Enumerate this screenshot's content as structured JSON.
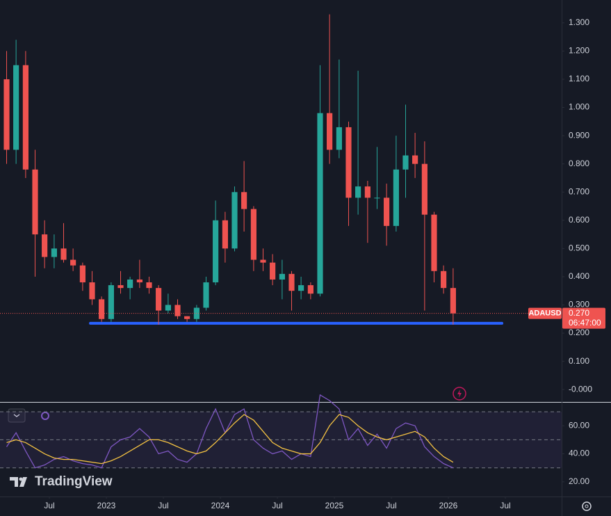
{
  "chart_data": [
    {
      "type": "candlestick",
      "symbol": "ADAUSD",
      "x": [
        2022.125,
        2022.208,
        2022.292,
        2022.375,
        2022.458,
        2022.542,
        2022.625,
        2022.708,
        2022.792,
        2022.875,
        2022.958,
        2023.042,
        2023.125,
        2023.208,
        2023.292,
        2023.375,
        2023.458,
        2023.542,
        2023.625,
        2023.708,
        2023.792,
        2023.875,
        2023.958,
        2024.042,
        2024.125,
        2024.208,
        2024.292,
        2024.375,
        2024.458,
        2024.542,
        2024.625,
        2024.708,
        2024.792,
        2024.875,
        2024.958,
        2025.042,
        2025.125,
        2025.208,
        2025.292,
        2025.375,
        2025.458,
        2025.542,
        2025.625,
        2025.708,
        2025.792,
        2025.875,
        2025.958,
        2026.042
      ],
      "open": [
        1.1,
        0.85,
        1.15,
        0.78,
        0.55,
        0.47,
        0.5,
        0.46,
        0.44,
        0.38,
        0.32,
        0.25,
        0.37,
        0.36,
        0.39,
        0.38,
        0.36,
        0.28,
        0.3,
        0.26,
        0.25,
        0.29,
        0.38,
        0.6,
        0.5,
        0.7,
        0.64,
        0.46,
        0.45,
        0.39,
        0.41,
        0.35,
        0.37,
        0.34,
        0.98,
        0.85,
        0.93,
        0.68,
        0.72,
        0.68,
        0.68,
        0.58,
        0.78,
        0.83,
        0.8,
        0.62,
        0.42,
        0.36
      ],
      "high": [
        1.2,
        1.24,
        1.2,
        0.85,
        0.6,
        0.55,
        0.59,
        0.5,
        0.45,
        0.42,
        0.33,
        0.38,
        0.42,
        0.4,
        0.46,
        0.4,
        0.37,
        0.34,
        0.32,
        0.26,
        0.3,
        0.4,
        0.67,
        0.63,
        0.72,
        0.81,
        0.65,
        0.5,
        0.48,
        0.46,
        0.42,
        0.4,
        0.38,
        1.15,
        1.33,
        1.17,
        0.95,
        1.13,
        0.74,
        0.86,
        0.73,
        0.9,
        1.01,
        0.91,
        0.88,
        0.63,
        0.44,
        0.43
      ],
      "low": [
        0.8,
        0.8,
        0.75,
        0.4,
        0.43,
        0.43,
        0.45,
        0.42,
        0.35,
        0.3,
        0.24,
        0.24,
        0.34,
        0.32,
        0.36,
        0.34,
        0.23,
        0.27,
        0.25,
        0.24,
        0.24,
        0.28,
        0.37,
        0.45,
        0.49,
        0.56,
        0.42,
        0.42,
        0.37,
        0.32,
        0.28,
        0.32,
        0.32,
        0.33,
        0.8,
        0.82,
        0.58,
        0.62,
        0.52,
        0.64,
        0.51,
        0.56,
        0.68,
        0.75,
        0.28,
        0.38,
        0.34,
        0.23
      ],
      "close": [
        0.85,
        1.15,
        0.78,
        0.55,
        0.47,
        0.5,
        0.46,
        0.44,
        0.38,
        0.32,
        0.25,
        0.37,
        0.36,
        0.39,
        0.38,
        0.36,
        0.28,
        0.3,
        0.26,
        0.25,
        0.29,
        0.38,
        0.6,
        0.5,
        0.7,
        0.64,
        0.46,
        0.45,
        0.39,
        0.41,
        0.35,
        0.37,
        0.34,
        0.98,
        0.85,
        0.93,
        0.68,
        0.72,
        0.68,
        0.68,
        0.58,
        0.78,
        0.83,
        0.8,
        0.62,
        0.42,
        0.36,
        0.27
      ],
      "up_color": "#26a69a",
      "down_color": "#ef5350",
      "xlim": [
        2022.067,
        2026.994
      ],
      "xticks": [
        {
          "value": 2022.5,
          "label": "Jul"
        },
        2023,
        {
          "value": 2023.5,
          "label": "Jul"
        },
        2024,
        {
          "value": 2024.5,
          "label": "Jul"
        },
        2025,
        {
          "value": 2025.5,
          "label": "Jul"
        },
        2026,
        {
          "value": 2026.5,
          "label": "Jul"
        }
      ],
      "ylim": [
        -0.044,
        1.381
      ],
      "yticks": [
        {
          "value": 0,
          "label": "-0.000"
        },
        {
          "value": 0.1,
          "label": "0.100"
        },
        {
          "value": 0.2,
          "label": "0.200"
        },
        {
          "value": 0.3,
          "label": "0.300"
        },
        {
          "value": 0.4,
          "label": "0.400"
        },
        {
          "value": 0.5,
          "label": "0.500"
        },
        {
          "value": 0.6,
          "label": "0.600"
        },
        {
          "value": 0.7,
          "label": "0.700"
        },
        {
          "value": 0.8,
          "label": "0.800"
        },
        {
          "value": 0.9,
          "label": "0.900"
        },
        {
          "value": 1.0,
          "label": "1.000"
        },
        {
          "value": 1.1,
          "label": "1.100"
        },
        {
          "value": 1.2,
          "label": "1.200"
        },
        {
          "value": 1.3,
          "label": "1.300"
        }
      ],
      "last_price": {
        "value": 0.27,
        "label": "0.270"
      },
      "countdown": "06:47:00",
      "support_line": {
        "value": 0.235,
        "x": [
          2022.86,
          2026.47
        ],
        "color": "#2962ff"
      }
    },
    {
      "type": "line",
      "series": [
        {
          "color": "#7e57c2",
          "values": [
            45,
            55,
            42,
            30,
            32,
            36,
            38,
            35,
            33,
            32,
            30,
            45,
            50,
            52,
            58,
            52,
            40,
            42,
            36,
            34,
            40,
            58,
            72,
            55,
            68,
            72,
            50,
            44,
            40,
            42,
            36,
            40,
            38,
            82,
            78,
            72,
            50,
            58,
            46,
            54,
            44,
            58,
            62,
            60,
            45,
            38,
            33,
            30
          ]
        },
        {
          "color": "#f5c342",
          "values": [
            48,
            50,
            48,
            44,
            40,
            37,
            36,
            36,
            35,
            34,
            33,
            35,
            38,
            42,
            46,
            50,
            50,
            48,
            45,
            42,
            40,
            42,
            48,
            55,
            62,
            68,
            64,
            56,
            48,
            44,
            42,
            40,
            40,
            48,
            60,
            68,
            66,
            60,
            55,
            52,
            50,
            52,
            54,
            56,
            52,
            44,
            38,
            34
          ]
        }
      ],
      "ylim": [
        9,
        76.5
      ],
      "yticks": [
        {
          "value": 20,
          "label": "20.00"
        },
        {
          "value": 40,
          "label": "40.00"
        },
        {
          "value": 60,
          "label": "60.00"
        }
      ],
      "levels": [
        30,
        50,
        70
      ],
      "brand": "TradingView"
    }
  ]
}
